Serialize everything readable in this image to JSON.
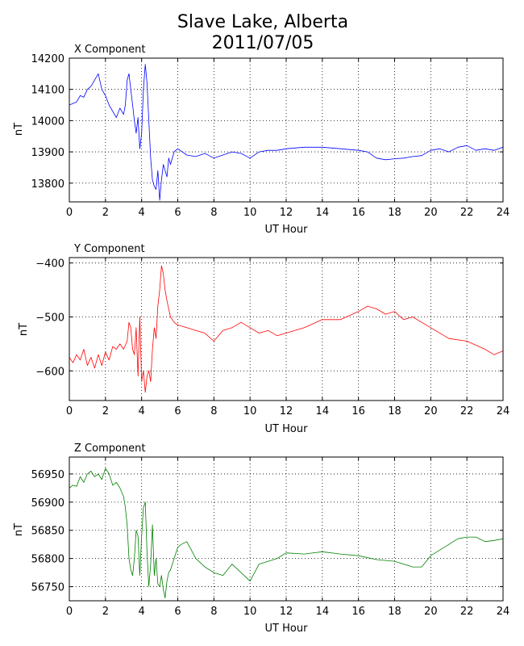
{
  "figure": {
    "title_line1": "Slave Lake, Alberta",
    "title_line2": "2011/07/05"
  },
  "chart_data": [
    {
      "type": "line",
      "title": "X Component",
      "xlabel": "UT Hour",
      "ylabel": "nT",
      "xlim": [
        0,
        24
      ],
      "ylim": [
        13740,
        14200
      ],
      "xticks": [
        0,
        2,
        4,
        6,
        8,
        10,
        12,
        14,
        16,
        18,
        20,
        22,
        24
      ],
      "yticks": [
        13800,
        13900,
        14000,
        14100,
        14200
      ],
      "grid": true,
      "color": "#0000ff",
      "series": [
        {
          "x": [
            0,
            0.2,
            0.4,
            0.6,
            0.8,
            1.0,
            1.2,
            1.4,
            1.6,
            1.8,
            2.0,
            2.2,
            2.4,
            2.6,
            2.8,
            3.0,
            3.1,
            3.2,
            3.3,
            3.4,
            3.5,
            3.6,
            3.7,
            3.8,
            3.9,
            4.0,
            4.1,
            4.2,
            4.3,
            4.4,
            4.5,
            4.6,
            4.7,
            4.8,
            4.9,
            5.0,
            5.1,
            5.2,
            5.3,
            5.4,
            5.5,
            5.6,
            5.8,
            6.0,
            6.5,
            7.0,
            7.5,
            8.0,
            8.5,
            9.0,
            9.5,
            10.0,
            10.5,
            11.0,
            11.5,
            12.0,
            13.0,
            14.0,
            15.0,
            16.0,
            16.5,
            17.0,
            17.5,
            18.0,
            18.5,
            19.0,
            19.5,
            20.0,
            20.5,
            21.0,
            21.5,
            22.0,
            22.5,
            23.0,
            23.5,
            24.0
          ],
          "y": [
            14050,
            14055,
            14060,
            14080,
            14075,
            14100,
            14110,
            14130,
            14150,
            14100,
            14080,
            14050,
            14030,
            14010,
            14040,
            14020,
            14050,
            14130,
            14150,
            14100,
            14050,
            14000,
            13960,
            14010,
            13910,
            13960,
            14100,
            14180,
            14120,
            14000,
            13880,
            13810,
            13790,
            13780,
            13840,
            13745,
            13810,
            13860,
            13840,
            13820,
            13880,
            13860,
            13900,
            13910,
            13890,
            13885,
            13895,
            13880,
            13890,
            13900,
            13895,
            13880,
            13900,
            13905,
            13905,
            13910,
            13915,
            13915,
            13910,
            13905,
            13900,
            13880,
            13875,
            13878,
            13880,
            13885,
            13888,
            13905,
            13910,
            13900,
            13915,
            13920,
            13905,
            13910,
            13905,
            13915
          ]
        }
      ]
    },
    {
      "type": "line",
      "title": "Y Component",
      "xlabel": "UT Hour",
      "ylabel": "nT",
      "xlim": [
        0,
        24
      ],
      "ylim": [
        -655,
        -390
      ],
      "xticks": [
        0,
        2,
        4,
        6,
        8,
        10,
        12,
        14,
        16,
        18,
        20,
        22,
        24
      ],
      "yticks": [
        -600,
        -500,
        -400
      ],
      "grid": true,
      "color": "#ff0000",
      "series": [
        {
          "x": [
            0,
            0.2,
            0.4,
            0.6,
            0.8,
            1.0,
            1.2,
            1.4,
            1.6,
            1.8,
            2.0,
            2.2,
            2.4,
            2.6,
            2.8,
            3.0,
            3.2,
            3.3,
            3.4,
            3.5,
            3.6,
            3.7,
            3.8,
            3.9,
            4.0,
            4.1,
            4.2,
            4.3,
            4.4,
            4.5,
            4.6,
            4.7,
            4.8,
            4.9,
            5.0,
            5.1,
            5.2,
            5.3,
            5.4,
            5.6,
            5.8,
            6.0,
            6.5,
            7.0,
            7.5,
            8.0,
            8.5,
            9.0,
            9.5,
            10.0,
            10.5,
            11.0,
            11.5,
            12.0,
            13.0,
            14.0,
            15.0,
            16.0,
            16.5,
            17.0,
            17.5,
            18.0,
            18.5,
            19.0,
            19.5,
            20.0,
            21.0,
            22.0,
            23.0,
            23.5,
            24.0
          ],
          "y": [
            -575,
            -585,
            -570,
            -580,
            -560,
            -590,
            -575,
            -595,
            -570,
            -590,
            -565,
            -580,
            -555,
            -560,
            -550,
            -560,
            -545,
            -510,
            -520,
            -560,
            -570,
            -520,
            -610,
            -500,
            -620,
            -600,
            -640,
            -610,
            -600,
            -620,
            -560,
            -520,
            -540,
            -480,
            -450,
            -405,
            -420,
            -450,
            -470,
            -500,
            -510,
            -515,
            -520,
            -525,
            -530,
            -545,
            -525,
            -520,
            -510,
            -520,
            -530,
            -525,
            -535,
            -530,
            -520,
            -505,
            -505,
            -490,
            -480,
            -485,
            -495,
            -490,
            -505,
            -500,
            -510,
            -520,
            -540,
            -545,
            -560,
            -570,
            -563
          ]
        }
      ]
    },
    {
      "type": "line",
      "title": "Z Component",
      "xlabel": "UT Hour",
      "ylabel": "nT",
      "xlim": [
        0,
        24
      ],
      "ylim": [
        56725,
        56980
      ],
      "xticks": [
        0,
        2,
        4,
        6,
        8,
        10,
        12,
        14,
        16,
        18,
        20,
        22,
        24
      ],
      "yticks": [
        56750,
        56800,
        56850,
        56900,
        56950
      ],
      "grid": true,
      "color": "#008000",
      "series": [
        {
          "x": [
            0,
            0.2,
            0.4,
            0.6,
            0.8,
            1.0,
            1.2,
            1.4,
            1.6,
            1.8,
            2.0,
            2.2,
            2.4,
            2.6,
            2.8,
            3.0,
            3.1,
            3.2,
            3.3,
            3.4,
            3.5,
            3.6,
            3.7,
            3.8,
            3.9,
            4.0,
            4.1,
            4.2,
            4.3,
            4.4,
            4.5,
            4.6,
            4.7,
            4.8,
            4.9,
            5.0,
            5.1,
            5.2,
            5.3,
            5.4,
            5.5,
            5.6,
            5.8,
            6.0,
            6.2,
            6.5,
            7.0,
            7.5,
            8.0,
            8.5,
            9.0,
            9.5,
            10.0,
            10.5,
            11.0,
            11.5,
            12.0,
            13.0,
            14.0,
            15.0,
            16.0,
            17.0,
            18.0,
            19.0,
            19.5,
            20.0,
            20.5,
            21.0,
            21.5,
            22.0,
            22.5,
            23.0,
            23.5,
            24.0
          ],
          "y": [
            56925,
            56930,
            56928,
            56945,
            56935,
            56950,
            56955,
            56945,
            56950,
            56940,
            56960,
            56950,
            56930,
            56935,
            56925,
            56910,
            56890,
            56860,
            56800,
            56780,
            56770,
            56800,
            56850,
            56840,
            56770,
            56840,
            56890,
            56900,
            56810,
            56750,
            56790,
            56860,
            56770,
            56800,
            56755,
            56750,
            56770,
            56745,
            56730,
            56760,
            56775,
            56780,
            56800,
            56820,
            56825,
            56830,
            56800,
            56785,
            56775,
            56770,
            56790,
            56775,
            56760,
            56790,
            56795,
            56800,
            56810,
            56808,
            56812,
            56808,
            56805,
            56798,
            56795,
            56785,
            56785,
            56805,
            56815,
            56825,
            56835,
            56838,
            56838,
            56830,
            56832,
            56835
          ]
        }
      ]
    }
  ]
}
